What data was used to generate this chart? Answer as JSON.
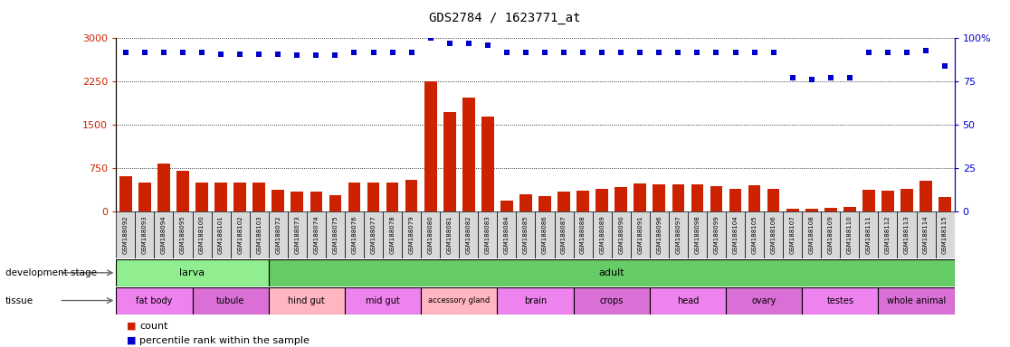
{
  "title": "GDS2784 / 1623771_at",
  "samples": [
    "GSM188092",
    "GSM188093",
    "GSM188094",
    "GSM188095",
    "GSM188100",
    "GSM188101",
    "GSM188102",
    "GSM188103",
    "GSM188072",
    "GSM188073",
    "GSM188074",
    "GSM188075",
    "GSM188076",
    "GSM188077",
    "GSM188078",
    "GSM188079",
    "GSM188080",
    "GSM188081",
    "GSM188082",
    "GSM188083",
    "GSM188084",
    "GSM188085",
    "GSM188086",
    "GSM188087",
    "GSM188088",
    "GSM188089",
    "GSM188090",
    "GSM188091",
    "GSM188096",
    "GSM188097",
    "GSM188098",
    "GSM188099",
    "GSM188104",
    "GSM188105",
    "GSM188106",
    "GSM188107",
    "GSM188108",
    "GSM188109",
    "GSM188110",
    "GSM188111",
    "GSM188112",
    "GSM188113",
    "GSM188114",
    "GSM188115"
  ],
  "counts": [
    620,
    500,
    830,
    700,
    510,
    500,
    510,
    510,
    380,
    350,
    340,
    290,
    500,
    500,
    500,
    550,
    2250,
    1720,
    1970,
    1640,
    190,
    300,
    270,
    350,
    370,
    400,
    430,
    490,
    480,
    470,
    480,
    440,
    400,
    450,
    390,
    55,
    55,
    70,
    80,
    380,
    370,
    390,
    530,
    250
  ],
  "percentiles": [
    92,
    92,
    92,
    92,
    92,
    91,
    91,
    91,
    91,
    90,
    90,
    90,
    92,
    92,
    92,
    92,
    100,
    97,
    97,
    96,
    92,
    92,
    92,
    92,
    92,
    92,
    92,
    92,
    92,
    92,
    92,
    92,
    92,
    92,
    92,
    77,
    76,
    77,
    77,
    92,
    92,
    92,
    93,
    84
  ],
  "development_stages": [
    {
      "label": "larva",
      "start": 0,
      "end": 8
    },
    {
      "label": "adult",
      "start": 8,
      "end": 44
    }
  ],
  "tissues": [
    {
      "label": "fat body",
      "start": 0,
      "end": 4,
      "color": "#ee82ee"
    },
    {
      "label": "tubule",
      "start": 4,
      "end": 8,
      "color": "#da70d6"
    },
    {
      "label": "hind gut",
      "start": 8,
      "end": 12,
      "color": "#ffb6c1"
    },
    {
      "label": "mid gut",
      "start": 12,
      "end": 16,
      "color": "#ee82ee"
    },
    {
      "label": "accessory gland",
      "start": 16,
      "end": 20,
      "color": "#ffb6c1"
    },
    {
      "label": "brain",
      "start": 20,
      "end": 24,
      "color": "#ee82ee"
    },
    {
      "label": "crops",
      "start": 24,
      "end": 28,
      "color": "#da70d6"
    },
    {
      "label": "head",
      "start": 28,
      "end": 32,
      "color": "#ee82ee"
    },
    {
      "label": "ovary",
      "start": 32,
      "end": 36,
      "color": "#da70d6"
    },
    {
      "label": "testes",
      "start": 36,
      "end": 40,
      "color": "#ee82ee"
    },
    {
      "label": "whole animal",
      "start": 40,
      "end": 44,
      "color": "#da70d6"
    }
  ],
  "left_yticks": [
    0,
    750,
    1500,
    2250,
    3000
  ],
  "right_yticks": [
    0,
    25,
    50,
    75,
    100
  ],
  "bar_color": "#cc2200",
  "dot_color": "#0000cc",
  "larva_color": "#90ee90",
  "adult_color": "#66cc66",
  "bg_color": "#ffffff",
  "axis_color_left": "#cc2200",
  "axis_color_right": "#0000cc",
  "tick_bg_color": "#d8d8d8"
}
